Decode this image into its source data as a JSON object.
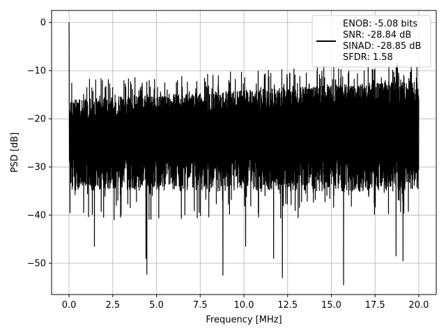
{
  "chart_data": {
    "type": "line",
    "xlabel": "Frequency [MHz]",
    "ylabel": "PSD [dB]",
    "xlim": [
      -1.0,
      21.0
    ],
    "ylim": [
      -56.5,
      2.5
    ],
    "xticks": [
      0.0,
      2.5,
      5.0,
      7.5,
      10.0,
      12.5,
      15.0,
      17.5,
      20.0
    ],
    "xtick_labels": [
      "0.0",
      "2.5",
      "5.0",
      "7.5",
      "10.0",
      "12.5",
      "15.0",
      "17.5",
      "20.0"
    ],
    "yticks": [
      0,
      -10,
      -20,
      -30,
      -40,
      -50
    ],
    "ytick_labels": [
      "0",
      "−10",
      "−20",
      "−30",
      "−40",
      "−50"
    ],
    "grid": true,
    "legend_position": "top-right",
    "series": [
      {
        "legend_lines": [
          "ENOB: -5.08 bits",
          "SNR: -28.84 dB",
          "SINAD: -28.85 dB",
          "SFDR: 1.58"
        ],
        "color": "#000000",
        "x_range": [
          0.0,
          20.0
        ],
        "peak": {
          "x": 0.0,
          "y": 0.0
        },
        "band_upper_approx": -10,
        "band_lower_approx": -35,
        "notable_minima": [
          {
            "x": 4.45,
            "y": -52.3
          },
          {
            "x": 8.8,
            "y": -52.5
          },
          {
            "x": 12.2,
            "y": -53.0
          },
          {
            "x": 15.7,
            "y": -54.5
          },
          {
            "x": 19.1,
            "y": -49.5
          },
          {
            "x": 18.7,
            "y": -48.5
          },
          {
            "x": 4.4,
            "y": -49.0
          },
          {
            "x": 11.7,
            "y": -49.0
          },
          {
            "x": 10.1,
            "y": -46.5
          },
          {
            "x": 1.45,
            "y": -46.5
          }
        ]
      }
    ]
  }
}
